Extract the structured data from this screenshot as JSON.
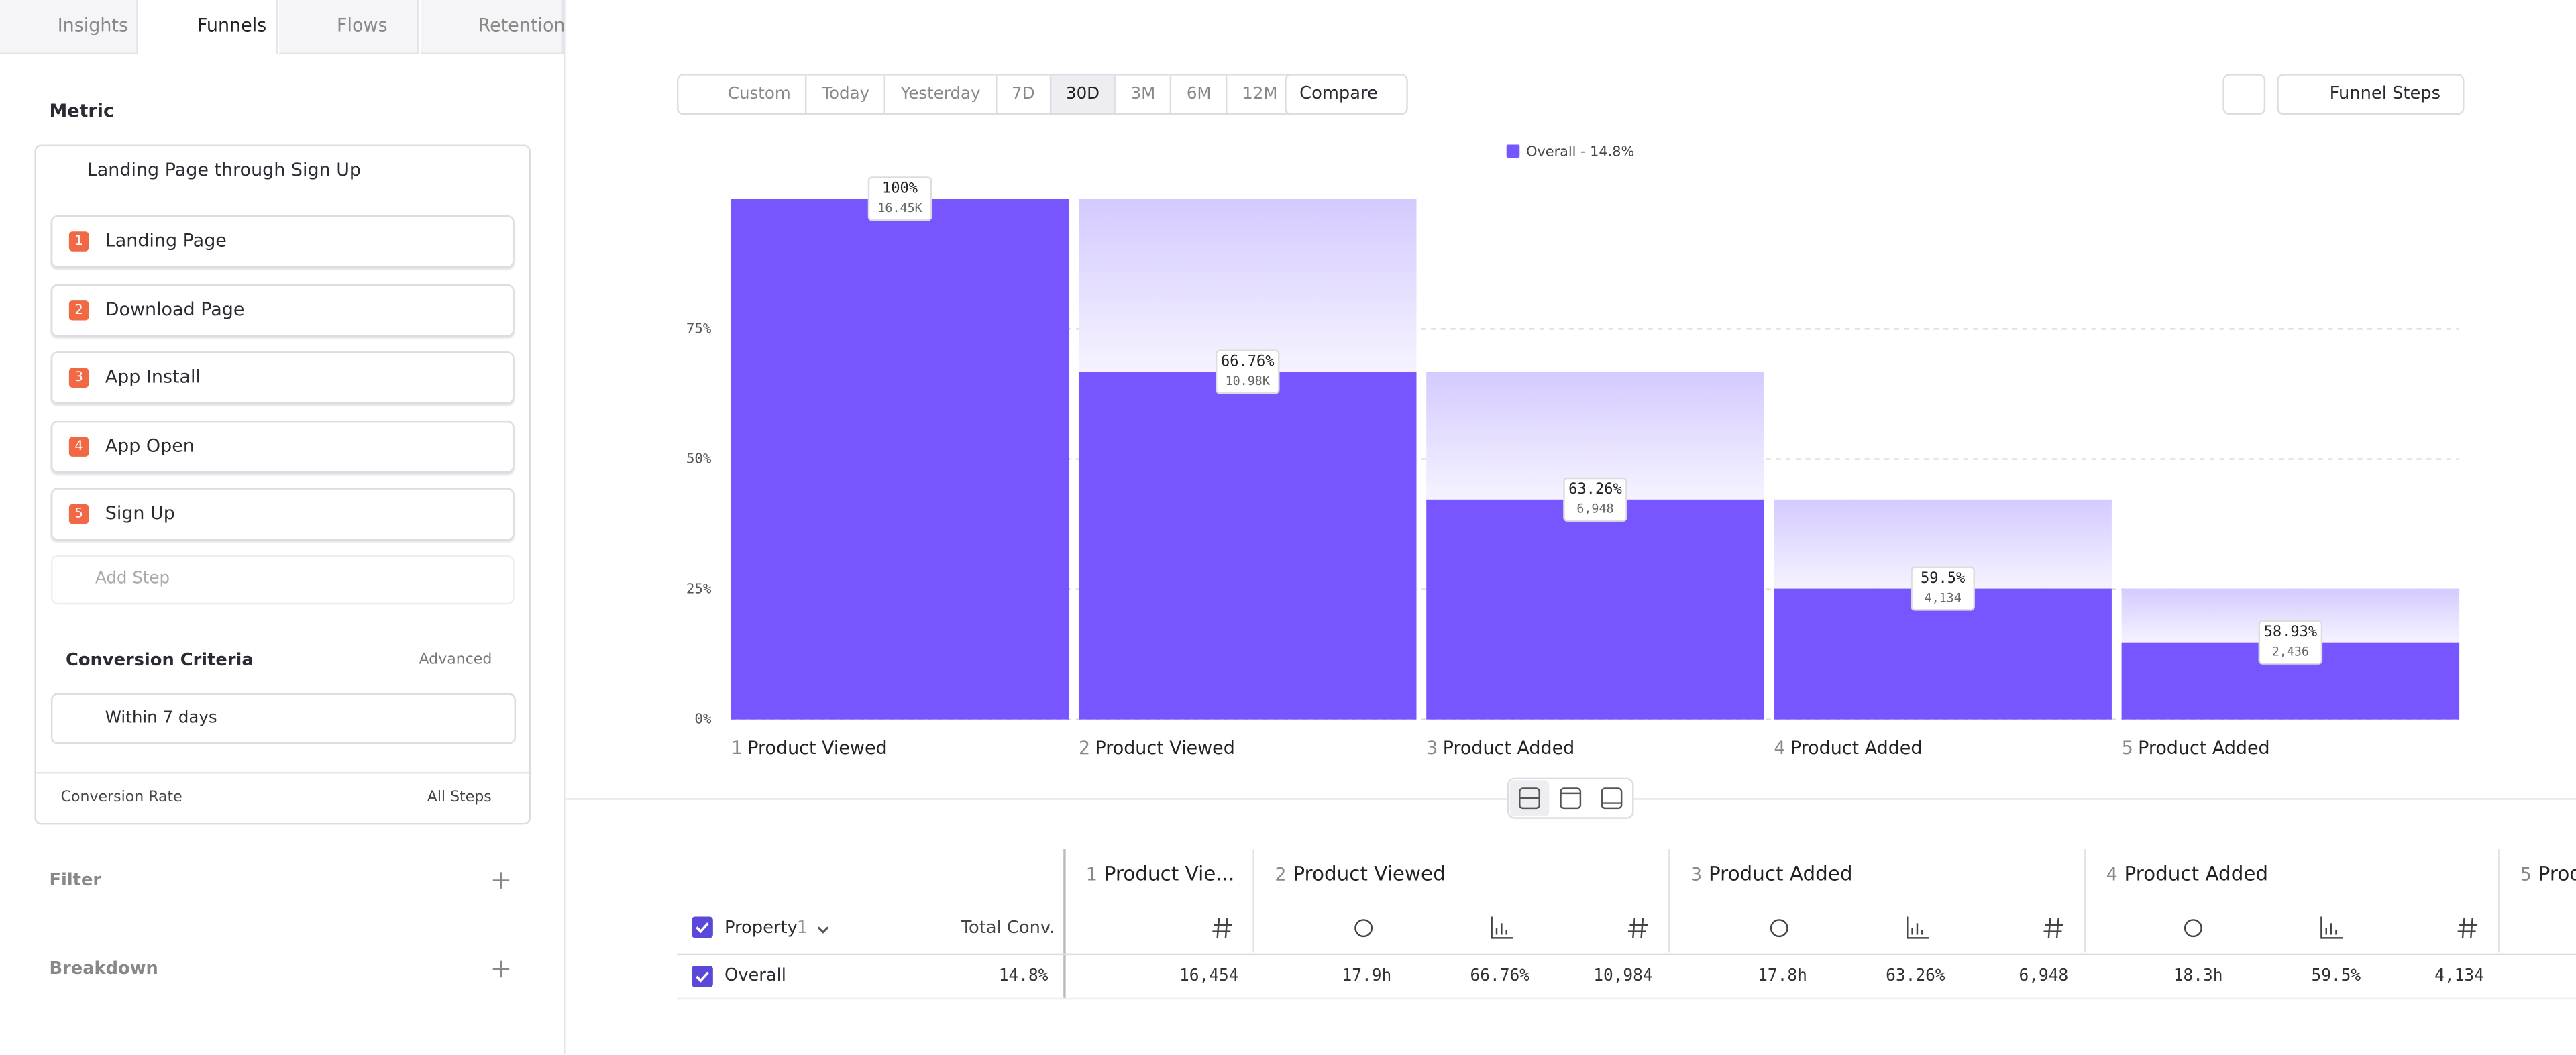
{
  "tabs": [
    "Insights",
    "Funnels",
    "Flows",
    "Retention"
  ],
  "active_tab": 1,
  "sidebar": {
    "metric_label": "Metric",
    "funnel_name": "Landing Page through Sign Up",
    "steps": [
      {
        "number": 1,
        "label": "Landing Page"
      },
      {
        "number": 2,
        "label": "Download Page"
      },
      {
        "number": 3,
        "label": "App Install"
      },
      {
        "number": 4,
        "label": "App Open"
      },
      {
        "number": 5,
        "label": "Sign Up"
      }
    ],
    "add_step": "Add Step",
    "conversion_criteria": "Conversion Criteria",
    "advanced": "Advanced",
    "window": "Within 7 days",
    "conversion_rate": "Conversion Rate",
    "all_steps": "All Steps",
    "filter": "Filter",
    "breakdown": "Breakdown"
  },
  "toolbar": {
    "date_ranges": [
      "Custom",
      "Today",
      "Yesterday",
      "7D",
      "30D",
      "3M",
      "6M",
      "12M"
    ],
    "active_range": 4,
    "compare": "Compare",
    "view": "Funnel Steps"
  },
  "chart_data": {
    "type": "funnel",
    "step_numbers": [
      1,
      2,
      3,
      4,
      5
    ],
    "categories": [
      "Product Viewed",
      "Product Viewed",
      "Product Added",
      "Product Added",
      "Product Added"
    ],
    "series": [
      {
        "name": "Overall - 14.8%",
        "color": "#7856ff",
        "values": [
          100,
          66.76,
          42.23,
          25.13,
          14.81
        ]
      }
    ],
    "step_conversion": [
      100,
      66.76,
      63.26,
      59.5,
      58.93
    ],
    "step_conversion_labels": [
      "100%",
      "66.76%",
      "63.26%",
      "59.5%",
      "58.93%"
    ],
    "counts": [
      16454,
      10984,
      6948,
      4134,
      2436
    ],
    "count_labels": [
      "16.45K",
      "10.98K",
      "6,948",
      "4,134",
      "2,436"
    ],
    "ylim": [
      0,
      100
    ],
    "yticks": [
      {
        "value": 0,
        "label": "0%"
      },
      {
        "value": 25,
        "label": "25%"
      },
      {
        "value": 50,
        "label": "50%"
      },
      {
        "value": 75,
        "label": "75%"
      }
    ],
    "grid": true
  },
  "table": {
    "property": "Property",
    "property_index": "1",
    "total_conv": "Total Conv.",
    "step_headers": [
      {
        "number": 1,
        "label": "Product Vie..."
      },
      {
        "number": 2,
        "label": "Product Viewed"
      },
      {
        "number": 3,
        "label": "Product Added"
      },
      {
        "number": 4,
        "label": "Product Added"
      },
      {
        "number": 5,
        "label": "Product Added"
      }
    ],
    "rows": [
      {
        "label": "Overall",
        "cells": [
          "14.8%",
          "16,454",
          "17.9h",
          "66.76%",
          "10,984",
          "17.8h",
          "63.26%",
          "6,948",
          "18.3h",
          "59.5%",
          "4,134"
        ]
      }
    ]
  }
}
